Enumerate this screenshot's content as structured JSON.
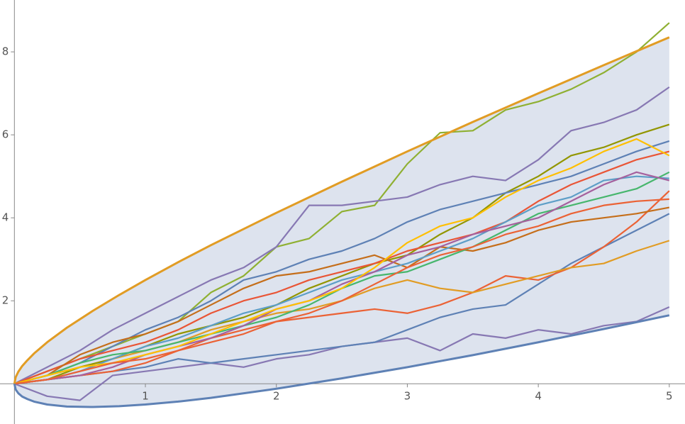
{
  "chart_data": {
    "type": "line",
    "xlim": [
      -0.11,
      5.12
    ],
    "ylim": [
      -0.97,
      9.25
    ],
    "xticks": [
      1,
      2,
      3,
      4,
      5
    ],
    "yticks": [
      2,
      4,
      6,
      8
    ],
    "filling": {
      "between": [
        0,
        1
      ],
      "color": "#dde3ee"
    },
    "series": [
      {
        "color": "#E19C24",
        "width": 3,
        "x": [
          0,
          0.01,
          0.03,
          0.06,
          0.1,
          0.15,
          0.25,
          0.4,
          0.6,
          0.8,
          1,
          1.25,
          1.5,
          2,
          2.5,
          3,
          3.5,
          4,
          4.5,
          5
        ],
        "values": [
          0,
          0.16,
          0.29,
          0.43,
          0.57,
          0.73,
          1.0,
          1.35,
          1.76,
          2.14,
          2.5,
          2.93,
          3.34,
          4.12,
          4.87,
          5.6,
          6.31,
          7.0,
          7.68,
          8.35
        ]
      },
      {
        "color": "#5E81B5",
        "width": 3,
        "x": [
          0,
          0.01,
          0.03,
          0.06,
          0.1,
          0.15,
          0.25,
          0.4,
          0.6,
          0.8,
          1,
          1.25,
          1.5,
          2,
          2.5,
          3,
          3.5,
          4,
          4.5,
          5
        ],
        "values": [
          0,
          -0.14,
          -0.23,
          -0.31,
          -0.37,
          -0.43,
          -0.5,
          -0.55,
          -0.56,
          -0.54,
          -0.5,
          -0.43,
          -0.34,
          -0.12,
          0.13,
          0.4,
          0.69,
          1.0,
          1.32,
          1.65
        ]
      },
      {
        "color": "#8FB032",
        "x": [
          0,
          0.25,
          0.5,
          0.75,
          1,
          1.25,
          1.5,
          1.75,
          2,
          2.25,
          2.5,
          2.75,
          3,
          3.25,
          3.5,
          3.75,
          4,
          4.25,
          4.5,
          4.75,
          5
        ],
        "values": [
          0,
          0.3,
          0.6,
          0.9,
          1.2,
          1.5,
          2.2,
          2.6,
          3.3,
          3.5,
          4.15,
          4.3,
          5.3,
          6.05,
          6.1,
          6.6,
          6.8,
          7.1,
          7.5,
          8.0,
          8.7
        ]
      },
      {
        "color": "#8778B3",
        "x": [
          0,
          0.25,
          0.5,
          0.75,
          1,
          1.25,
          1.5,
          1.75,
          2,
          2.25,
          2.5,
          2.75,
          3,
          3.25,
          3.5,
          3.75,
          4,
          4.25,
          4.5,
          4.75,
          5
        ],
        "values": [
          0,
          0.4,
          0.8,
          1.3,
          1.7,
          2.1,
          2.5,
          2.8,
          3.3,
          4.3,
          4.3,
          4.4,
          4.5,
          4.8,
          5.0,
          4.9,
          5.4,
          6.1,
          6.3,
          6.6,
          7.15
        ]
      },
      {
        "color": "#8778B3",
        "x": [
          0,
          0.25,
          0.5,
          0.75,
          1,
          1.25,
          1.5,
          1.75,
          2,
          2.25,
          2.5,
          2.75,
          3,
          3.25,
          3.5,
          3.75,
          4,
          4.25,
          4.5,
          4.75,
          5
        ],
        "values": [
          0,
          -0.3,
          -0.4,
          0.2,
          0.3,
          0.4,
          0.5,
          0.4,
          0.6,
          0.7,
          0.9,
          1.0,
          1.1,
          0.8,
          1.2,
          1.1,
          1.3,
          1.2,
          1.4,
          1.5,
          1.85
        ]
      },
      {
        "color": "#5E81B5",
        "x": [
          0,
          0.25,
          0.5,
          0.75,
          1,
          1.25,
          1.5,
          1.75,
          2,
          2.25,
          2.5,
          2.75,
          3,
          3.25,
          3.5,
          3.75,
          4,
          4.25,
          4.5,
          4.75,
          5
        ],
        "values": [
          0,
          0.1,
          0.2,
          0.3,
          0.4,
          0.6,
          0.5,
          0.6,
          0.7,
          0.8,
          0.9,
          1.0,
          1.3,
          1.6,
          1.8,
          1.9,
          2.4,
          2.9,
          3.3,
          3.7,
          4.1
        ]
      },
      {
        "color": "#EB6235",
        "x": [
          0,
          0.25,
          0.5,
          0.75,
          1,
          1.25,
          1.5,
          1.75,
          2,
          2.25,
          2.5,
          2.75,
          3,
          3.25,
          3.5,
          3.75,
          4,
          4.25,
          4.5,
          4.75,
          5
        ],
        "values": [
          0,
          0.1,
          0.2,
          0.3,
          0.5,
          0.8,
          1.1,
          1.3,
          1.5,
          1.6,
          1.7,
          1.8,
          1.7,
          1.9,
          2.2,
          2.6,
          2.5,
          2.8,
          3.3,
          3.9,
          4.65
        ]
      },
      {
        "color": "#E19C24",
        "x": [
          0,
          0.25,
          0.5,
          0.75,
          1,
          1.25,
          1.5,
          1.75,
          2,
          2.25,
          2.5,
          2.75,
          3,
          3.25,
          3.5,
          3.75,
          4,
          4.25,
          4.5,
          4.75,
          5
        ],
        "values": [
          0,
          0.2,
          0.4,
          0.6,
          0.8,
          1.0,
          1.3,
          1.5,
          1.7,
          1.8,
          2.0,
          2.3,
          2.5,
          2.3,
          2.2,
          2.4,
          2.6,
          2.8,
          2.9,
          3.2,
          3.45
        ]
      },
      {
        "color": "#929600",
        "x": [
          0,
          0.25,
          0.5,
          0.75,
          1,
          1.25,
          1.5,
          1.75,
          2,
          2.25,
          2.5,
          2.75,
          3,
          3.25,
          3.5,
          3.75,
          4,
          4.25,
          4.5,
          4.75,
          5
        ],
        "values": [
          0,
          0.1,
          0.4,
          0.6,
          0.9,
          1.2,
          1.4,
          1.6,
          1.9,
          2.3,
          2.6,
          2.9,
          3.1,
          3.6,
          4.0,
          4.6,
          5.0,
          5.5,
          5.7,
          6.0,
          6.25
        ]
      },
      {
        "color": "#5E81B5",
        "x": [
          0,
          0.25,
          0.5,
          0.75,
          1,
          1.25,
          1.5,
          1.75,
          2,
          2.25,
          2.5,
          2.75,
          3,
          3.25,
          3.5,
          3.75,
          4,
          4.25,
          4.5,
          4.75,
          5
        ],
        "values": [
          0,
          0.2,
          0.5,
          0.9,
          1.3,
          1.6,
          2.0,
          2.5,
          2.7,
          3.0,
          3.2,
          3.5,
          3.9,
          4.2,
          4.4,
          4.6,
          4.8,
          5.0,
          5.3,
          5.6,
          5.85
        ]
      },
      {
        "color": "#E95536",
        "x": [
          0,
          0.25,
          0.5,
          0.75,
          1,
          1.25,
          1.5,
          1.75,
          2,
          2.25,
          2.5,
          2.75,
          3,
          3.25,
          3.5,
          3.75,
          4,
          4.25,
          4.5,
          4.75,
          5
        ],
        "values": [
          0,
          0.3,
          0.6,
          0.8,
          1.0,
          1.3,
          1.7,
          2.0,
          2.2,
          2.5,
          2.7,
          2.9,
          3.2,
          3.4,
          3.6,
          3.9,
          4.4,
          4.8,
          5.1,
          5.4,
          5.6
        ]
      },
      {
        "color": "#C56E1A",
        "x": [
          0,
          0.25,
          0.5,
          0.75,
          1,
          1.25,
          1.5,
          1.75,
          2,
          2.25,
          2.5,
          2.75,
          3,
          3.25,
          3.5,
          3.75,
          4,
          4.25,
          4.5,
          4.75,
          5
        ],
        "values": [
          0,
          0.2,
          0.7,
          1.0,
          1.2,
          1.5,
          1.9,
          2.3,
          2.6,
          2.7,
          2.9,
          3.1,
          2.8,
          3.3,
          3.2,
          3.4,
          3.7,
          3.9,
          4.0,
          4.1,
          4.25
        ]
      },
      {
        "color": "#5D9EC7",
        "x": [
          0,
          0.25,
          0.5,
          0.75,
          1,
          1.25,
          1.5,
          1.75,
          2,
          2.25,
          2.5,
          2.75,
          3,
          3.25,
          3.5,
          3.75,
          4,
          4.25,
          4.5,
          4.75,
          5
        ],
        "values": [
          0,
          0.1,
          0.3,
          0.6,
          0.9,
          1.1,
          1.4,
          1.7,
          1.9,
          2.2,
          2.5,
          2.7,
          2.9,
          3.2,
          3.5,
          3.9,
          4.3,
          4.5,
          4.9,
          5.0,
          4.95
        ]
      },
      {
        "color": "#47B66D",
        "x": [
          0,
          0.25,
          0.5,
          0.75,
          1,
          1.25,
          1.5,
          1.75,
          2,
          2.25,
          2.5,
          2.75,
          3,
          3.25,
          3.5,
          3.75,
          4,
          4.25,
          4.5,
          4.75,
          5
        ],
        "values": [
          0,
          0.2,
          0.5,
          0.7,
          0.8,
          1.0,
          1.2,
          1.4,
          1.6,
          1.9,
          2.3,
          2.6,
          2.7,
          3.0,
          3.3,
          3.7,
          4.1,
          4.3,
          4.5,
          4.7,
          5.1
        ]
      },
      {
        "color": "#A5609D",
        "x": [
          0,
          0.25,
          0.5,
          0.75,
          1,
          1.25,
          1.5,
          1.75,
          2,
          2.25,
          2.5,
          2.75,
          3,
          3.25,
          3.5,
          3.75,
          4,
          4.25,
          4.5,
          4.75,
          5
        ],
        "values": [
          0,
          0.1,
          0.2,
          0.4,
          0.7,
          0.9,
          1.1,
          1.4,
          1.8,
          2.0,
          2.4,
          2.7,
          3.1,
          3.3,
          3.6,
          3.8,
          4.0,
          4.4,
          4.8,
          5.1,
          4.9
        ]
      },
      {
        "color": "#FFBF00",
        "x": [
          0,
          0.25,
          0.5,
          0.75,
          1,
          1.25,
          1.5,
          1.75,
          2,
          2.25,
          2.5,
          2.75,
          3,
          3.25,
          3.5,
          3.75,
          4,
          4.25,
          4.5,
          4.75,
          5
        ],
        "values": [
          0,
          0.2,
          0.4,
          0.5,
          0.7,
          0.9,
          1.2,
          1.5,
          1.8,
          2.0,
          2.3,
          2.8,
          3.4,
          3.8,
          4.0,
          4.5,
          4.9,
          5.2,
          5.6,
          5.9,
          5.5
        ]
      },
      {
        "color": "#EB6235",
        "x": [
          0,
          0.25,
          0.5,
          0.75,
          1,
          1.25,
          1.5,
          1.75,
          2,
          2.25,
          2.5,
          2.75,
          3,
          3.25,
          3.5,
          3.75,
          4,
          4.25,
          4.5,
          4.75,
          5
        ],
        "values": [
          0,
          0.1,
          0.3,
          0.5,
          0.6,
          0.8,
          1.0,
          1.2,
          1.5,
          1.7,
          2.0,
          2.4,
          2.8,
          3.1,
          3.3,
          3.6,
          3.8,
          4.1,
          4.3,
          4.4,
          4.45
        ]
      }
    ]
  }
}
